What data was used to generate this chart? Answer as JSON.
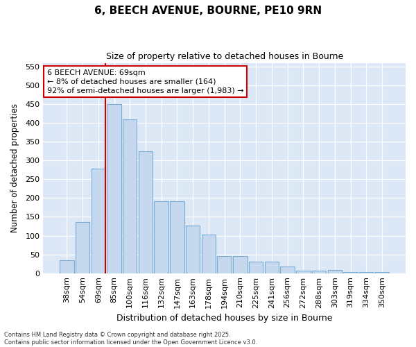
{
  "title": "6, BEECH AVENUE, BOURNE, PE10 9RN",
  "subtitle": "Size of property relative to detached houses in Bourne",
  "xlabel": "Distribution of detached houses by size in Bourne",
  "ylabel": "Number of detached properties",
  "categories": [
    "38sqm",
    "54sqm",
    "69sqm",
    "85sqm",
    "100sqm",
    "116sqm",
    "132sqm",
    "147sqm",
    "163sqm",
    "178sqm",
    "194sqm",
    "210sqm",
    "225sqm",
    "241sqm",
    "256sqm",
    "272sqm",
    "288sqm",
    "303sqm",
    "319sqm",
    "334sqm",
    "350sqm"
  ],
  "values": [
    35,
    137,
    278,
    450,
    410,
    325,
    192,
    192,
    126,
    102,
    46,
    46,
    31,
    31,
    18,
    7,
    7,
    8,
    4,
    4,
    4
  ],
  "bar_color": "#c5d8ed",
  "bar_edge_color": "#7aacd4",
  "highlight_index": 2,
  "highlight_line_color": "#cc0000",
  "ylim": [
    0,
    560
  ],
  "yticks": [
    0,
    50,
    100,
    150,
    200,
    250,
    300,
    350,
    400,
    450,
    500,
    550
  ],
  "annotation_text": "6 BEECH AVENUE: 69sqm\n← 8% of detached houses are smaller (164)\n92% of semi-detached houses are larger (1,983) →",
  "annotation_box_color": "#cc0000",
  "footer_line1": "Contains HM Land Registry data © Crown copyright and database right 2025.",
  "footer_line2": "Contains public sector information licensed under the Open Government Licence v3.0.",
  "background_color": "#ffffff",
  "plot_bg_color": "#dce8f5"
}
